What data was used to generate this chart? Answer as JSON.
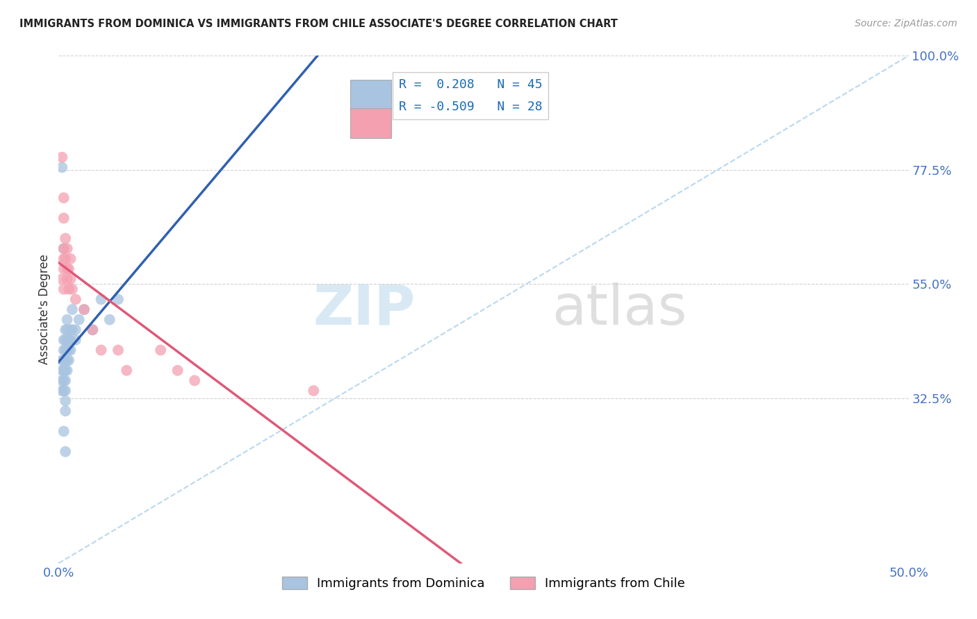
{
  "title": "IMMIGRANTS FROM DOMINICA VS IMMIGRANTS FROM CHILE ASSOCIATE'S DEGREE CORRELATION CHART",
  "source": "Source: ZipAtlas.com",
  "ylabel": "Associate's Degree",
  "ylabel_right_ticks": [
    "100.0%",
    "77.5%",
    "55.0%",
    "32.5%"
  ],
  "ylabel_right_vals": [
    1.0,
    0.775,
    0.55,
    0.325
  ],
  "xlim": [
    0.0,
    0.5
  ],
  "ylim": [
    0.0,
    1.0
  ],
  "dominica_R": "0.208",
  "dominica_N": "45",
  "chile_R": "-0.509",
  "chile_N": "28",
  "dominica_color": "#a8c4e0",
  "chile_color": "#f4a0b0",
  "dominica_line_color": "#3060b0",
  "chile_line_color": "#e05878",
  "diag_line_color": "#b8d8f0",
  "dominica_x": [
    0.002,
    0.002,
    0.002,
    0.002,
    0.003,
    0.003,
    0.003,
    0.003,
    0.003,
    0.003,
    0.004,
    0.004,
    0.004,
    0.004,
    0.004,
    0.004,
    0.004,
    0.004,
    0.004,
    0.005,
    0.005,
    0.005,
    0.005,
    0.005,
    0.005,
    0.006,
    0.006,
    0.006,
    0.007,
    0.007,
    0.007,
    0.008,
    0.008,
    0.01,
    0.01,
    0.012,
    0.015,
    0.02,
    0.025,
    0.03,
    0.035,
    0.003,
    0.003,
    0.004,
    0.002
  ],
  "dominica_y": [
    0.4,
    0.38,
    0.36,
    0.34,
    0.44,
    0.42,
    0.4,
    0.38,
    0.36,
    0.34,
    0.46,
    0.44,
    0.42,
    0.4,
    0.38,
    0.36,
    0.34,
    0.32,
    0.3,
    0.48,
    0.46,
    0.44,
    0.42,
    0.4,
    0.38,
    0.44,
    0.42,
    0.4,
    0.46,
    0.44,
    0.42,
    0.5,
    0.46,
    0.46,
    0.44,
    0.48,
    0.5,
    0.46,
    0.52,
    0.48,
    0.52,
    0.62,
    0.26,
    0.22,
    0.78
  ],
  "chile_x": [
    0.002,
    0.003,
    0.003,
    0.003,
    0.003,
    0.004,
    0.004,
    0.005,
    0.005,
    0.005,
    0.006,
    0.006,
    0.007,
    0.007,
    0.008,
    0.01,
    0.015,
    0.02,
    0.025,
    0.035,
    0.04,
    0.06,
    0.07,
    0.08,
    0.15,
    0.003,
    0.003,
    0.002
  ],
  "chile_y": [
    0.56,
    0.62,
    0.6,
    0.58,
    0.54,
    0.64,
    0.6,
    0.62,
    0.58,
    0.56,
    0.58,
    0.54,
    0.6,
    0.56,
    0.54,
    0.52,
    0.5,
    0.46,
    0.42,
    0.42,
    0.38,
    0.42,
    0.38,
    0.36,
    0.34,
    0.72,
    0.68,
    0.8
  ]
}
